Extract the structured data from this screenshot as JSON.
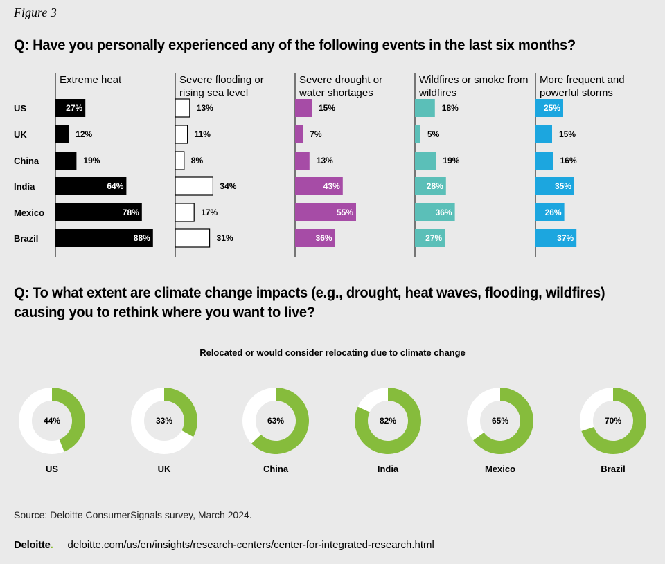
{
  "figure_label": "Figure 3",
  "q1_title": "Q: Have you personally experienced any of the following events in the last six months?",
  "q2_title": "Q: To what extent are climate change impacts (e.g., drought, heat waves, flooding, wildfires) causing you to rethink where you want to live?",
  "donut_subtitle": "Relocated or would consider relocating due to climate change",
  "source": "Source: Deloitte ConsumerSignals survey, March 2024.",
  "footer": {
    "brand": "Deloitte",
    "brand_dot": ".",
    "url": "deloitte.com/us/en/insights/research-centers/center-for-integrated-research.html"
  },
  "colors": {
    "black": "#000000",
    "white": "#ffffff",
    "purple": "#a64ca6",
    "teal": "#5bbfb8",
    "blue": "#1ca6df",
    "green": "#86bc3c",
    "background": "#eaeaea"
  },
  "chart_data": [
    {
      "type": "bar",
      "orientation": "horizontal",
      "title": "Q: Have you personally experienced any of the following events in the last six months?",
      "categories": [
        "US",
        "UK",
        "China",
        "India",
        "Mexico",
        "Brazil"
      ],
      "series": [
        {
          "name": "Extreme heat",
          "header": [
            "Extreme heat"
          ],
          "color": "#000000",
          "label_color": "#ffffff",
          "values": [
            27,
            12,
            19,
            64,
            78,
            88
          ]
        },
        {
          "name": "Severe flooding or rising sea level",
          "header": [
            "Severe flooding or",
            "rising sea level"
          ],
          "color": "#ffffff",
          "label_color": "#000000",
          "values": [
            13,
            11,
            8,
            34,
            17,
            31
          ]
        },
        {
          "name": "Severe drought or water shortages",
          "header": [
            "Severe drought or",
            "water shortages"
          ],
          "color": "#a64ca6",
          "label_color": "#ffffff",
          "values": [
            15,
            7,
            13,
            43,
            55,
            36
          ]
        },
        {
          "name": "Wildfires or smoke from wildfires",
          "header": [
            "Wildfires or smoke from",
            "wildfires"
          ],
          "color": "#5bbfb8",
          "label_color": "#ffffff",
          "values": [
            18,
            5,
            19,
            28,
            36,
            27
          ]
        },
        {
          "name": "More frequent and powerful storms",
          "header": [
            "More frequent and",
            "powerful storms"
          ],
          "color": "#1ca6df",
          "label_color": "#ffffff",
          "values": [
            25,
            15,
            16,
            35,
            26,
            37
          ]
        }
      ],
      "value_suffix": "%",
      "xlim": [
        0,
        100
      ]
    },
    {
      "type": "pie",
      "variant": "donut",
      "title": "Relocated or would consider relocating due to climate change",
      "categories": [
        "US",
        "UK",
        "China",
        "India",
        "Mexico",
        "Brazil"
      ],
      "values": [
        44,
        33,
        63,
        82,
        65,
        70
      ],
      "value_suffix": "%",
      "color": "#86bc3c",
      "remainder_color": "#ffffff"
    }
  ]
}
